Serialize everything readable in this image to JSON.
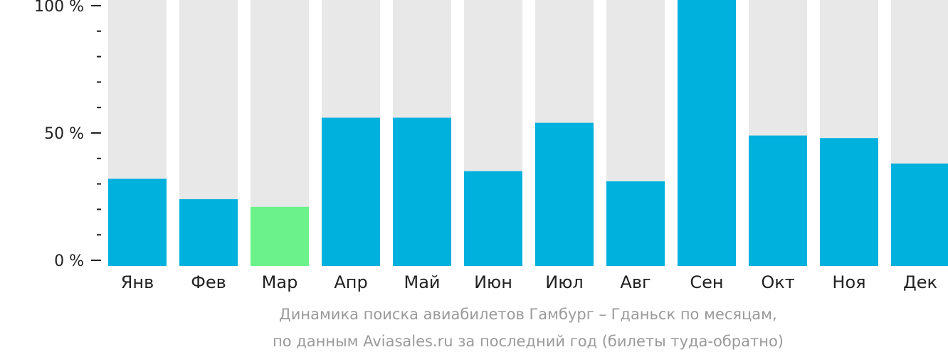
{
  "chart_data": {
    "type": "bar",
    "categories": [
      "Янв",
      "Фев",
      "Мар",
      "Апр",
      "Май",
      "Июн",
      "Июл",
      "Авг",
      "Сен",
      "Окт",
      "Ноя",
      "Дек"
    ],
    "values": [
      32,
      24,
      21,
      56,
      56,
      35,
      54,
      31,
      100,
      49,
      48,
      38
    ],
    "highlight_index": 2,
    "ylim": [
      0,
      100
    ],
    "yticks": [
      "0 %",
      "50 %",
      "100 %"
    ],
    "ytick_values": [
      0,
      50,
      100
    ],
    "caption_line1": "Динамика поиска авиабилетов Гамбург – Гданьск по месяцам,",
    "caption_line2": "по данным Aviasales.ru за последний год (билеты туда-обратно)",
    "colors": {
      "bar": "#00b0dd",
      "highlight": "#6cf28a",
      "track": "#e8e8e8",
      "axis": "#222222"
    }
  }
}
